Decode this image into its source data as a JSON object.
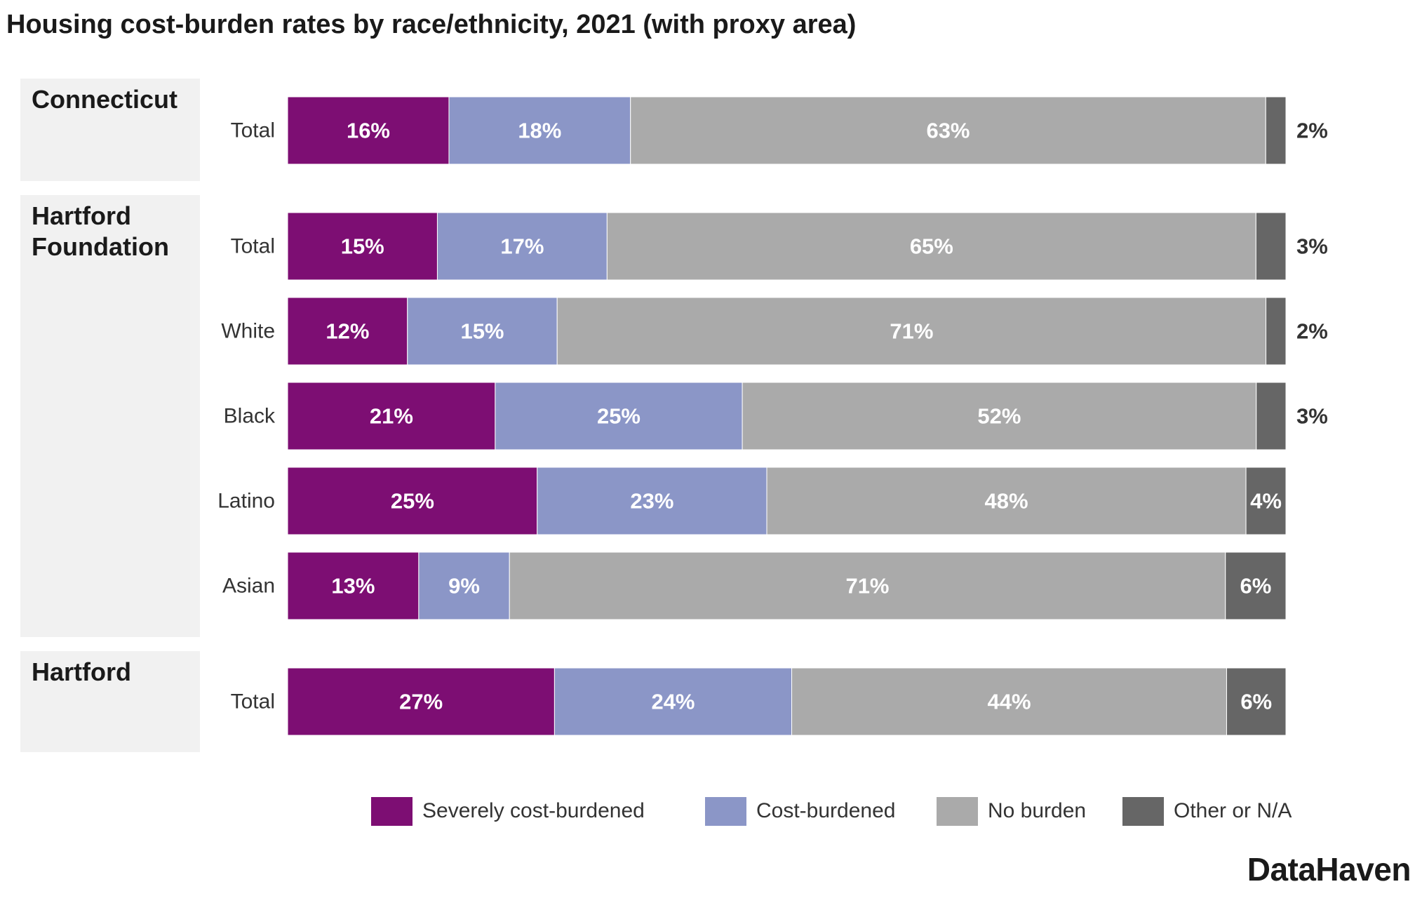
{
  "title": "Housing cost-burden rates by race/ethnicity, 2021 (with proxy area)",
  "brand": "DataHaven",
  "colors": {
    "severe": "#7d0e73",
    "cost": "#8b96c7",
    "none": "#aaaaaa",
    "other": "#666666"
  },
  "chart_data": {
    "type": "bar",
    "orientation": "horizontal",
    "stacked": true,
    "unit": "%",
    "xlim": [
      0,
      100
    ],
    "groups": [
      {
        "name": "Connecticut",
        "label_lines": [
          "Connecticut"
        ],
        "rows": [
          {
            "category": "Total",
            "values": [
              16,
              18,
              63,
              2
            ]
          }
        ]
      },
      {
        "name": "Hartford Foundation",
        "label_lines": [
          "Hartford",
          "Foundation"
        ],
        "rows": [
          {
            "category": "Total",
            "values": [
              15,
              17,
              65,
              3
            ]
          },
          {
            "category": "White",
            "values": [
              12,
              15,
              71,
              2
            ]
          },
          {
            "category": "Black",
            "values": [
              21,
              25,
              52,
              3
            ]
          },
          {
            "category": "Latino",
            "values": [
              25,
              23,
              48,
              4
            ]
          },
          {
            "category": "Asian",
            "values": [
              13,
              9,
              71,
              6
            ]
          }
        ]
      },
      {
        "name": "Hartford",
        "label_lines": [
          "Hartford"
        ],
        "rows": [
          {
            "category": "Total",
            "values": [
              27,
              24,
              44,
              6
            ]
          }
        ]
      }
    ],
    "series": [
      {
        "name": "Severely cost-burdened",
        "color": "#7d0e73"
      },
      {
        "name": "Cost-burdened",
        "color": "#8b96c7"
      },
      {
        "name": "No burden",
        "color": "#aaaaaa"
      },
      {
        "name": "Other or N/A",
        "color": "#666666"
      }
    ],
    "legend_position": "bottom-right",
    "grid": false
  }
}
